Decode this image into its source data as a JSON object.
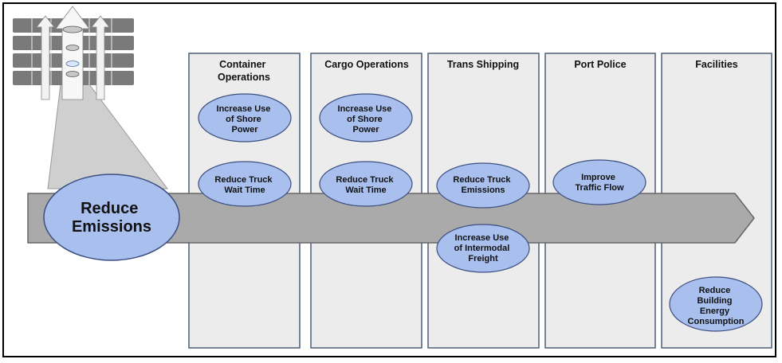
{
  "diagram": {
    "columns": [
      {
        "key": "container",
        "title": [
          "Container",
          "Operations"
        ]
      },
      {
        "key": "cargo",
        "title": [
          "Cargo Operations"
        ]
      },
      {
        "key": "trans",
        "title": [
          "Trans Shipping"
        ]
      },
      {
        "key": "police",
        "title": [
          "Port Police"
        ]
      },
      {
        "key": "facilities",
        "title": [
          "Facilities"
        ]
      }
    ],
    "goal": {
      "lines": [
        "Reduce",
        "Emissions"
      ]
    },
    "initiatives": [
      {
        "key": "co-shore",
        "lines": [
          "Increase Use",
          "of Shore",
          "Power"
        ]
      },
      {
        "key": "co-truck",
        "lines": [
          "Reduce Truck",
          "Wait Time"
        ]
      },
      {
        "key": "cg-shore",
        "lines": [
          "Increase Use",
          "of Shore",
          "Power"
        ]
      },
      {
        "key": "cg-truck",
        "lines": [
          "Reduce Truck",
          "Wait Time"
        ]
      },
      {
        "key": "ts-truck",
        "lines": [
          "Reduce Truck",
          "Emissions"
        ]
      },
      {
        "key": "ts-intermodal",
        "lines": [
          "Increase Use",
          "of Intermodal",
          "Freight"
        ]
      },
      {
        "key": "pp-traffic",
        "lines": [
          "Improve",
          "Traffic Flow"
        ]
      },
      {
        "key": "fa-energy",
        "lines": [
          "Reduce",
          "Building",
          "Energy",
          "Consumption"
        ]
      }
    ],
    "colors": {
      "ellipse_fill": "#a9c0ef",
      "ellipse_stroke": "#3c4f80",
      "column_fill": "#ececec",
      "column_stroke": "#4d5f75",
      "arrow_fill": "#aaaaaa",
      "arrow_stroke": "#666666",
      "icon_block": "#7a7a7a",
      "icon_highlight": "#d8e6f7"
    }
  }
}
